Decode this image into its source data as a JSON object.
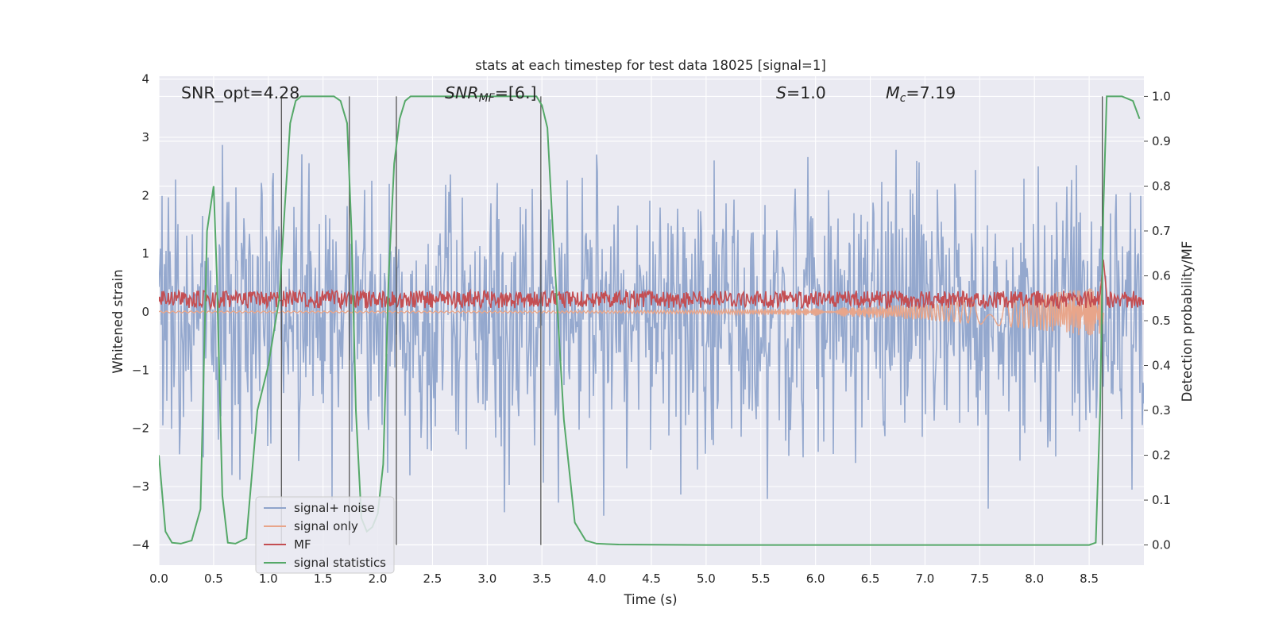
{
  "chart_data": {
    "type": "line",
    "title": "stats at each timestep for test data 18025 [signal=1]",
    "xlabel": "Time (s)",
    "ylabel": "Whitened strain",
    "y2label": "Detection probability/MF",
    "xlim": [
      0.0,
      9.0
    ],
    "ylim": [
      -4.35,
      4.05
    ],
    "y2lim": [
      -0.045,
      1.045
    ],
    "grid": true,
    "legend_position": "lower-left",
    "x_ticks": [
      "0.0",
      "0.5",
      "1.0",
      "1.5",
      "2.0",
      "2.5",
      "3.0",
      "3.5",
      "4.0",
      "4.5",
      "5.0",
      "5.5",
      "6.0",
      "6.5",
      "7.0",
      "7.5",
      "8.0",
      "8.5"
    ],
    "y_ticks": [
      "−4",
      "−3",
      "−2",
      "−1",
      "0",
      "1",
      "2",
      "3",
      "4"
    ],
    "y2_ticks": [
      "0.0",
      "0.1",
      "0.2",
      "0.3",
      "0.4",
      "0.5",
      "0.6",
      "0.7",
      "0.8",
      "0.9",
      "1.0"
    ],
    "annotations": {
      "snr_opt": "SNR_opt=4.28",
      "snr_mf_name": "SNR",
      "snr_mf_sub": "MF",
      "snr_mf_value": "=[6.]",
      "s_name": "S",
      "s_value": "=1.0",
      "mc_name": "M",
      "mc_sub": "c",
      "mc_value": "=7.19"
    },
    "series": [
      {
        "name": "signal+ noise",
        "color": "#8fa4cb",
        "kind": "noise",
        "axis": "left",
        "amplitude_sigma": 1.1,
        "peak_range": [
          -4.0,
          3.9
        ]
      },
      {
        "name": "signal only",
        "color": "#e8a58a",
        "kind": "chirp",
        "axis": "left",
        "x_start": 0.0,
        "x_end": 8.63,
        "final_amplitude": 0.45
      },
      {
        "name": "MF",
        "color": "#c44e52",
        "kind": "mf",
        "axis": "left",
        "baseline": 0.17,
        "spread": 0.3
      },
      {
        "name": "signal statistics",
        "color": "#55a868",
        "kind": "line",
        "axis": "right",
        "x": [
          0.0,
          0.06,
          0.12,
          0.2,
          0.3,
          0.38,
          0.44,
          0.5,
          0.53,
          0.58,
          0.63,
          0.7,
          0.8,
          0.9,
          1.0,
          1.1,
          1.15,
          1.2,
          1.25,
          1.3,
          1.4,
          1.5,
          1.6,
          1.66,
          1.72,
          1.76,
          1.8,
          1.85,
          1.9,
          1.95,
          2.0,
          2.05,
          2.1,
          2.15,
          2.2,
          2.25,
          2.3,
          2.5,
          3.0,
          3.3,
          3.45,
          3.5,
          3.55,
          3.6,
          3.7,
          3.8,
          3.9,
          4.0,
          4.2,
          5.0,
          6.0,
          7.0,
          8.0,
          8.5,
          8.56,
          8.6,
          8.63,
          8.66,
          8.7,
          8.8,
          8.9,
          8.96
        ],
        "y": [
          0.2,
          0.03,
          0.005,
          0.003,
          0.01,
          0.08,
          0.7,
          0.8,
          0.6,
          0.11,
          0.005,
          0.003,
          0.015,
          0.3,
          0.4,
          0.55,
          0.75,
          0.94,
          0.99,
          1.0,
          1.0,
          1.0,
          1.0,
          0.99,
          0.94,
          0.7,
          0.3,
          0.06,
          0.03,
          0.04,
          0.07,
          0.18,
          0.6,
          0.85,
          0.95,
          0.99,
          1.0,
          1.0,
          1.0,
          1.0,
          1.0,
          0.98,
          0.93,
          0.7,
          0.28,
          0.05,
          0.01,
          0.003,
          0.001,
          0.0,
          0.0,
          0.0,
          0.0,
          0.0,
          0.005,
          0.3,
          0.75,
          1.0,
          1.0,
          1.0,
          0.99,
          0.95
        ]
      },
      {
        "name": "markers",
        "kind": "vlines",
        "axis": "right",
        "x": [
          1.12,
          1.74,
          2.17,
          3.49,
          8.62
        ],
        "ymin": 0.0,
        "ymax": 1.0,
        "color": "#555555"
      }
    ]
  }
}
